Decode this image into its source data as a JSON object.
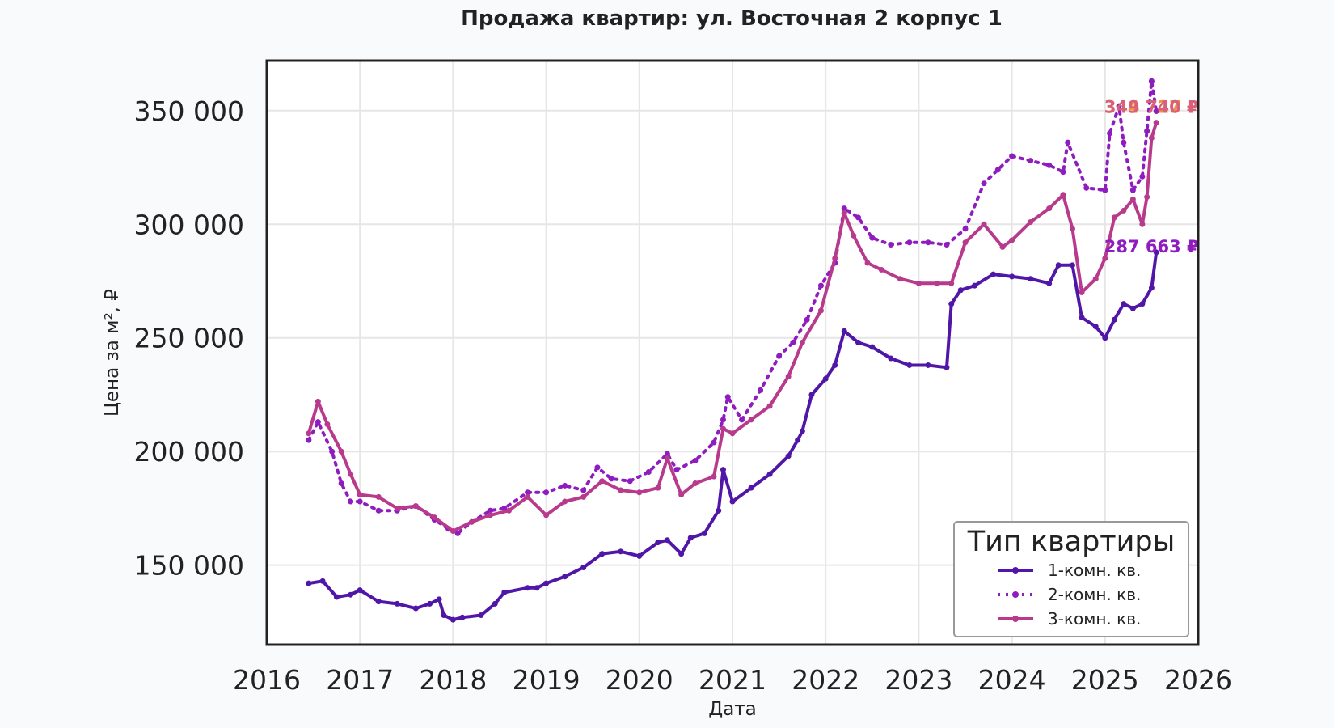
{
  "chart_data": {
    "type": "line",
    "title": "Продажа квартир: ул. Восточная 2 корпус 1",
    "xlabel": "Дата",
    "ylabel": "Цена за м², ₽",
    "xlim": [
      2016,
      2026
    ],
    "ylim": [
      115000,
      372000
    ],
    "x_ticks": [
      "2016",
      "2017",
      "2018",
      "2019",
      "2020",
      "2021",
      "2022",
      "2023",
      "2024",
      "2025",
      "2026"
    ],
    "y_ticks": [
      {
        "value": 150000,
        "label": "150 000"
      },
      {
        "value": 200000,
        "label": "200 000"
      },
      {
        "value": 250000,
        "label": "250 000"
      },
      {
        "value": 300000,
        "label": "300 000"
      },
      {
        "value": 350000,
        "label": "350 000"
      }
    ],
    "grid": true,
    "legend": {
      "title": "Тип квартиры",
      "position": "bottom-right"
    },
    "series": [
      {
        "name": "1-комн. кв.",
        "color": "#5016a8",
        "style": "solid",
        "x": [
          2016.45,
          2016.6,
          2016.75,
          2016.9,
          2017.0,
          2017.2,
          2017.4,
          2017.6,
          2017.75,
          2017.85,
          2017.9,
          2018.0,
          2018.1,
          2018.3,
          2018.45,
          2018.55,
          2018.8,
          2018.9,
          2019.0,
          2019.2,
          2019.4,
          2019.6,
          2019.8,
          2020.0,
          2020.2,
          2020.3,
          2020.45,
          2020.55,
          2020.7,
          2020.85,
          2020.9,
          2021.0,
          2021.2,
          2021.4,
          2021.6,
          2021.7,
          2021.75,
          2021.85,
          2022.0,
          2022.1,
          2022.2,
          2022.35,
          2022.5,
          2022.7,
          2022.9,
          2023.1,
          2023.3,
          2023.35,
          2023.45,
          2023.6,
          2023.8,
          2024.0,
          2024.2,
          2024.4,
          2024.5,
          2024.65,
          2024.75,
          2024.9,
          2025.0,
          2025.1,
          2025.2,
          2025.3,
          2025.4,
          2025.5,
          2025.55
        ],
        "y": [
          142000,
          143000,
          136000,
          137000,
          139000,
          134000,
          133000,
          131000,
          133000,
          135000,
          128000,
          126000,
          127000,
          128000,
          133000,
          138000,
          140000,
          140000,
          142000,
          145000,
          149000,
          155000,
          156000,
          154000,
          160000,
          161000,
          155000,
          162000,
          164000,
          174000,
          192000,
          178000,
          184000,
          190000,
          198000,
          205000,
          209000,
          225000,
          232000,
          238000,
          253000,
          248000,
          246000,
          241000,
          238000,
          238000,
          237000,
          265000,
          271000,
          273000,
          278000,
          277000,
          276000,
          274000,
          282000,
          282000,
          259000,
          255000,
          250000,
          258000,
          265000,
          263000,
          265000,
          272000,
          287663
        ]
      },
      {
        "name": "2-комн. кв.",
        "color": "#8e1cbf",
        "style": "dotted",
        "x": [
          2016.45,
          2016.55,
          2016.7,
          2016.8,
          2016.9,
          2017.0,
          2017.2,
          2017.4,
          2017.6,
          2017.8,
          2017.95,
          2018.05,
          2018.2,
          2018.4,
          2018.55,
          2018.8,
          2019.0,
          2019.2,
          2019.4,
          2019.55,
          2019.7,
          2019.9,
          2020.1,
          2020.3,
          2020.4,
          2020.6,
          2020.8,
          2020.9,
          2020.95,
          2021.1,
          2021.3,
          2021.5,
          2021.65,
          2021.8,
          2021.95,
          2022.1,
          2022.2,
          2022.35,
          2022.5,
          2022.7,
          2022.9,
          2023.1,
          2023.3,
          2023.5,
          2023.7,
          2023.85,
          2024.0,
          2024.2,
          2024.4,
          2024.55,
          2024.6,
          2024.8,
          2025.0,
          2025.05,
          2025.15,
          2025.2,
          2025.3,
          2025.4,
          2025.45,
          2025.5,
          2025.55
        ],
        "y": [
          205000,
          213000,
          200000,
          186000,
          178000,
          178000,
          174000,
          174000,
          176000,
          170000,
          166000,
          164000,
          169000,
          174000,
          175000,
          182000,
          182000,
          185000,
          183000,
          193000,
          188000,
          187000,
          191000,
          199000,
          192000,
          196000,
          204000,
          214000,
          224000,
          214000,
          227000,
          242000,
          248000,
          258000,
          273000,
          283000,
          307000,
          303000,
          294000,
          291000,
          292000,
          292000,
          291000,
          298000,
          318000,
          324000,
          330000,
          328000,
          326000,
          323000,
          336000,
          316000,
          315000,
          340000,
          352000,
          336000,
          315000,
          321000,
          341000,
          363000,
          349740
        ]
      },
      {
        "name": "3-комн. кв.",
        "color": "#b83a8c",
        "style": "solid",
        "x": [
          2016.45,
          2016.55,
          2016.65,
          2016.8,
          2016.9,
          2017.0,
          2017.2,
          2017.4,
          2017.6,
          2017.8,
          2018.0,
          2018.2,
          2018.4,
          2018.6,
          2018.8,
          2019.0,
          2019.2,
          2019.4,
          2019.6,
          2019.8,
          2020.0,
          2020.2,
          2020.3,
          2020.45,
          2020.6,
          2020.8,
          2020.9,
          2021.0,
          2021.2,
          2021.4,
          2021.6,
          2021.75,
          2021.95,
          2022.1,
          2022.2,
          2022.3,
          2022.45,
          2022.6,
          2022.8,
          2023.0,
          2023.2,
          2023.35,
          2023.5,
          2023.7,
          2023.9,
          2024.0,
          2024.2,
          2024.4,
          2024.55,
          2024.65,
          2024.75,
          2024.9,
          2025.0,
          2025.1,
          2025.2,
          2025.3,
          2025.4,
          2025.45,
          2025.5,
          2025.55
        ],
        "y": [
          208000,
          222000,
          212000,
          200000,
          190000,
          181000,
          180000,
          175000,
          176000,
          171000,
          165000,
          169000,
          172000,
          174000,
          180000,
          172000,
          178000,
          180000,
          187000,
          183000,
          182000,
          184000,
          197000,
          181000,
          186000,
          189000,
          210000,
          208000,
          214000,
          220000,
          233000,
          248000,
          262000,
          285000,
          305000,
          295000,
          283000,
          280000,
          276000,
          274000,
          274000,
          274000,
          292000,
          300000,
          290000,
          293000,
          301000,
          307000,
          313000,
          298000,
          270000,
          276000,
          285000,
          303000,
          306000,
          311000,
          300000,
          312000,
          338000,
          344727
        ]
      }
    ],
    "annotations": [
      {
        "text": "344 727 ₽",
        "color": "#f0913c",
        "series": "3-комн. кв."
      },
      {
        "text": "349 740 ₽",
        "color": "#d9607a",
        "series": "2-комн. кв."
      },
      {
        "text": "287 663 ₽",
        "color": "#8e1cbf",
        "series": "1-комн. кв."
      }
    ]
  }
}
